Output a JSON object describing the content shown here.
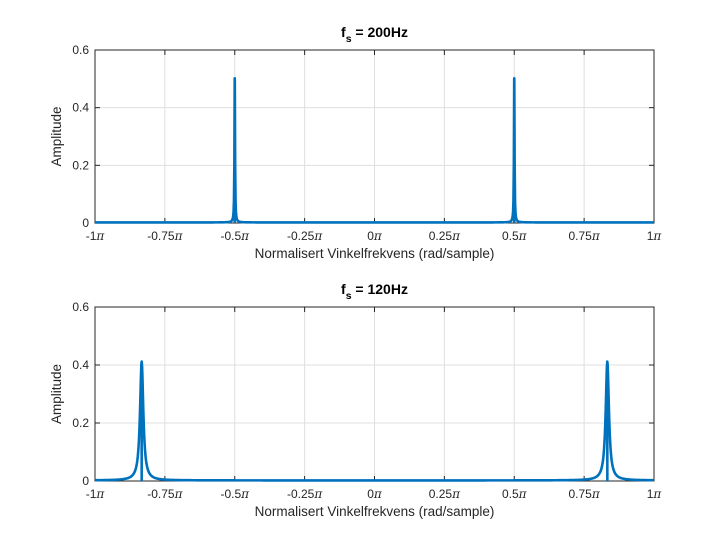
{
  "chart_data": [
    {
      "type": "line",
      "title": {
        "main": "f",
        "sub": "s",
        "rest": " = 200Hz"
      },
      "xlabel": "Normalisert Vinkelfrekvens (rad/sample)",
      "ylabel": "Amplitude",
      "xlim": [
        -1,
        1
      ],
      "ylim": [
        0,
        0.6
      ],
      "grid": true,
      "x_ticks": [
        {
          "num": "-1",
          "sym": "π"
        },
        {
          "num": "-0.75",
          "sym": "π"
        },
        {
          "num": "-0.5",
          "sym": "π"
        },
        {
          "num": "-0.25",
          "sym": "π"
        },
        {
          "num": "0",
          "sym": "π"
        },
        {
          "num": "0.25",
          "sym": "π"
        },
        {
          "num": "0.5",
          "sym": "π"
        },
        {
          "num": "0.75",
          "sym": "π"
        },
        {
          "num": "1",
          "sym": "π"
        }
      ],
      "y_ticks": [
        "0",
        "0.2",
        "0.4",
        "0.6"
      ],
      "line_color": "#0072bd",
      "peaks": [
        {
          "x": -0.5,
          "amplitude": 0.5
        },
        {
          "x": 0.5,
          "amplitude": 0.5
        }
      ]
    },
    {
      "type": "line",
      "title": {
        "main": "f",
        "sub": "s",
        "rest": " = 120Hz"
      },
      "xlabel": "Normalisert Vinkelfrekvens (rad/sample)",
      "ylabel": "Amplitude",
      "xlim": [
        -1,
        1
      ],
      "ylim": [
        0,
        0.6
      ],
      "grid": true,
      "x_ticks": [
        {
          "num": "-1",
          "sym": "π"
        },
        {
          "num": "-0.75",
          "sym": "π"
        },
        {
          "num": "-0.5",
          "sym": "π"
        },
        {
          "num": "-0.25",
          "sym": "π"
        },
        {
          "num": "0",
          "sym": "π"
        },
        {
          "num": "0.25",
          "sym": "π"
        },
        {
          "num": "0.5",
          "sym": "π"
        },
        {
          "num": "0.75",
          "sym": "π"
        },
        {
          "num": "1",
          "sym": "π"
        }
      ],
      "y_ticks": [
        "0",
        "0.2",
        "0.4",
        "0.6"
      ],
      "line_color": "#0072bd",
      "peaks": [
        {
          "x": -0.833,
          "amplitude": 0.41
        },
        {
          "x": 0.833,
          "amplitude": 0.41
        }
      ]
    }
  ]
}
